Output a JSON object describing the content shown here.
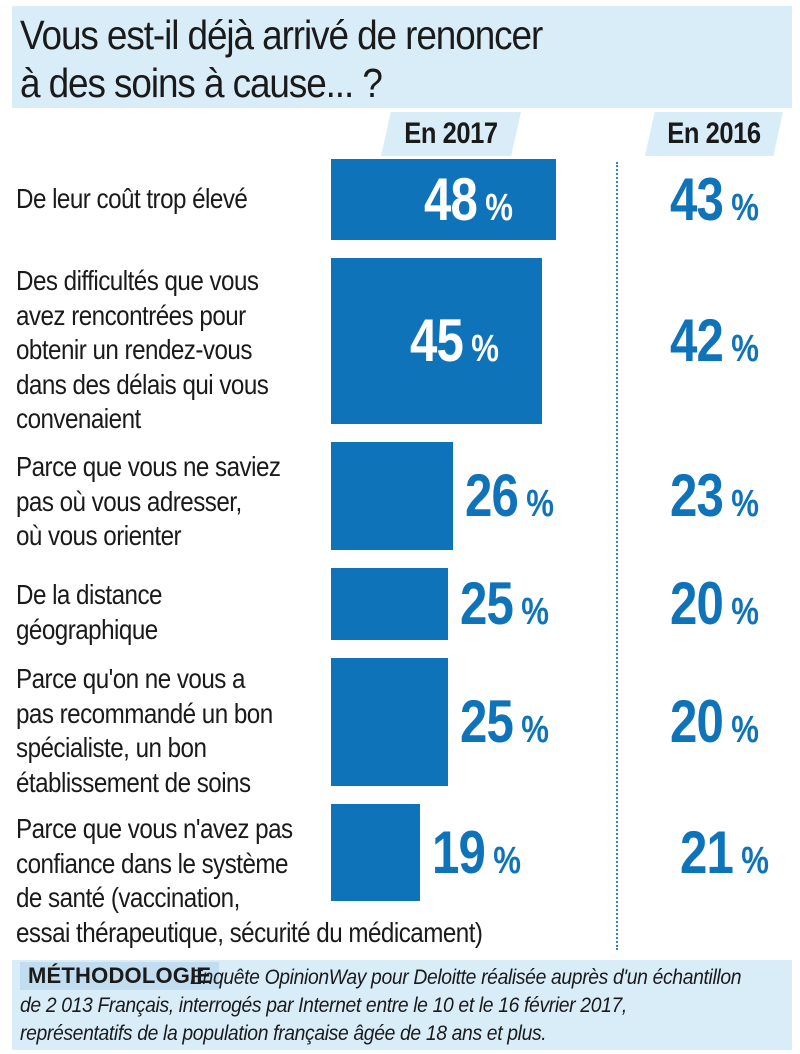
{
  "title": {
    "line1": "Vous est-il déjà arrivé de renoncer",
    "line2": "à des soins à cause... ?"
  },
  "columns": {
    "y2017": "En 2017",
    "y2016": "En 2016"
  },
  "chart_data": {
    "type": "bar",
    "title": "Vous est-il déjà arrivé de renoncer à des soins à cause... ?",
    "orientation": "horizontal",
    "unit": "%",
    "categories": [
      "De leur coût trop élevé",
      "Des difficultés que vous avez rencontrées pour obtenir un rendez-vous dans des délais qui vous convenaient",
      "Parce que vous ne saviez pas où vous adresser, où vous orienter",
      "De la distance géographique",
      "Parce qu'on ne vous a pas recommandé un bon spécialiste, un bon établissement de soins",
      "Parce que vous n'avez pas confiance dans le système de santé (vaccination, essai thérapeutique, sécurité du médicament)"
    ],
    "series": [
      {
        "name": "En 2017",
        "values": [
          48,
          45,
          26,
          25,
          25,
          19
        ],
        "color": "#0f73ba"
      },
      {
        "name": "En 2016",
        "values": [
          43,
          42,
          23,
          20,
          20,
          21
        ],
        "color": "#0f73ba"
      }
    ],
    "rows": [
      {
        "label_lines": [
          "De leur coût trop élevé"
        ],
        "v2017": "48",
        "v2016": "43"
      },
      {
        "label_lines": [
          "Des difficultés que vous",
          "avez rencontrées pour",
          "obtenir un rendez-vous",
          "dans des délais qui vous",
          "convenaient"
        ],
        "v2017": "45",
        "v2016": "42"
      },
      {
        "label_lines": [
          "Parce que vous ne saviez",
          "pas où vous adresser,",
          "où vous orienter"
        ],
        "v2017": "26",
        "v2016": "23"
      },
      {
        "label_lines": [
          "De la distance",
          "géographique"
        ],
        "v2017": "25",
        "v2016": "20"
      },
      {
        "label_lines": [
          "Parce qu'on ne vous a",
          "pas recommandé un bon",
          "spécialiste, un bon",
          "établissement de soins"
        ],
        "v2017": "25",
        "v2016": "20"
      },
      {
        "label_lines": [
          "Parce que vous n'avez pas",
          "confiance dans le système",
          "de santé (vaccination,",
          "essai thérapeutique, sécurité du médicament)"
        ],
        "v2017": "19",
        "v2016": "21"
      }
    ],
    "percent_symbol": "%"
  },
  "methodology": {
    "tag": "MÉTHODOLOGIE",
    "line1": "Enquête OpinionWay pour Deloitte réalisée auprès d'un échantillon",
    "line2": "de 2 013 Français, interrogés par Internet entre le 10 et le 16 février 2017,",
    "line3": "représentatifs de la population française âgée de 18 ans et plus."
  }
}
